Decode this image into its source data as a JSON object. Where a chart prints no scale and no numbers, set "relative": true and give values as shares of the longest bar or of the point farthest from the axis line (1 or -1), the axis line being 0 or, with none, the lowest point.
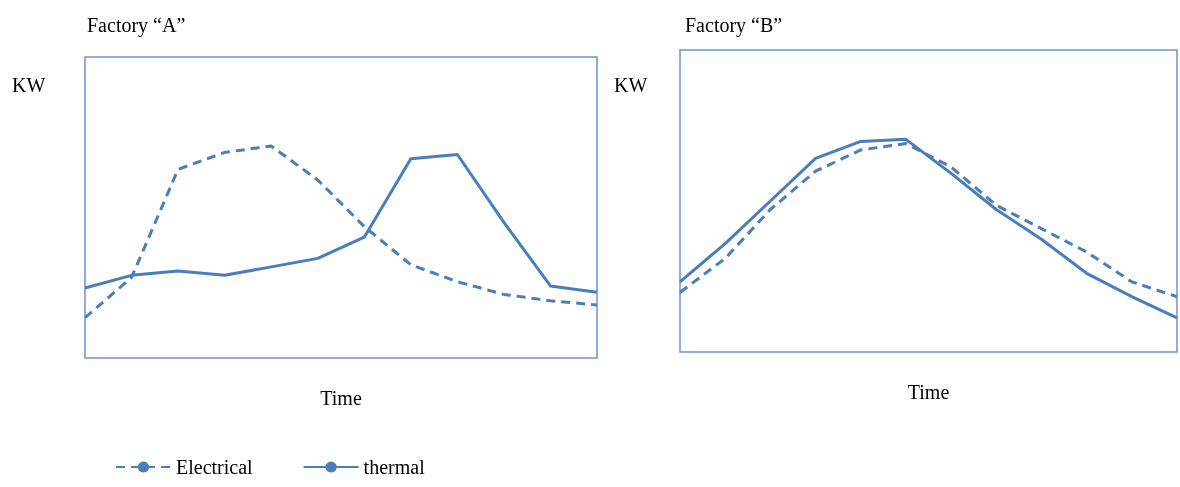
{
  "chart_data": [
    {
      "type": "line",
      "title": "Factory “A”",
      "xlabel": "Time",
      "ylabel": "KW",
      "relative": true,
      "grid": false,
      "legend": "bottom",
      "marker": "none",
      "categories": [
        null,
        null,
        null,
        null,
        null,
        null,
        null,
        null,
        null,
        null,
        null,
        null
      ],
      "series": [
        {
          "name": "Electrical",
          "color": "#4a7ebb",
          "line_style": "dashed",
          "values": [
            0.19,
            0.38,
            0.89,
            0.97,
            1.0,
            0.84,
            0.62,
            0.44,
            0.36,
            0.3,
            0.27,
            0.25
          ]
        },
        {
          "name": "thermal",
          "color": "#4a7ebb",
          "line_style": "solid",
          "values": [
            0.33,
            0.39,
            0.41,
            0.39,
            0.43,
            0.47,
            0.57,
            0.94,
            0.96,
            0.64,
            0.34,
            0.31
          ]
        }
      ]
    },
    {
      "type": "line",
      "title": "Factory “B”",
      "xlabel": "Time",
      "ylabel": "KW",
      "relative": true,
      "grid": false,
      "legend": false,
      "marker": "none",
      "categories": [
        null,
        null,
        null,
        null,
        null,
        null,
        null,
        null,
        null,
        null,
        null,
        null
      ],
      "series": [
        {
          "color": "#4a7ebb",
          "line_style": "dashed",
          "values": [
            0.28,
            0.44,
            0.67,
            0.85,
            0.95,
            0.98,
            0.87,
            0.69,
            0.58,
            0.47,
            0.33,
            0.26
          ]
        },
        {
          "color": "#4a7ebb",
          "line_style": "solid",
          "values": [
            0.33,
            0.51,
            0.71,
            0.91,
            0.99,
            1.0,
            0.84,
            0.67,
            0.53,
            0.37,
            0.26,
            0.16
          ]
        }
      ]
    }
  ]
}
